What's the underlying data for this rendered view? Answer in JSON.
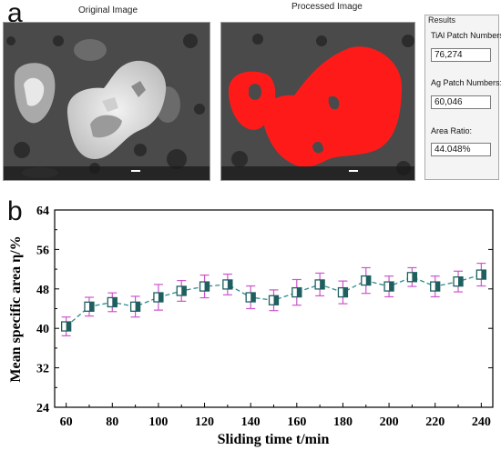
{
  "panel_a": {
    "letter": "a",
    "original_title": "Original Image",
    "processed_title": "Processed Image",
    "results": {
      "title": "Results",
      "tial_label": "TiAl Patch Numbers:",
      "tial_value": "76,274",
      "ag_label": "Ag Patch Numbers:",
      "ag_value": "60,046",
      "ratio_label": "Area Ratio:",
      "ratio_value": "44.048%"
    },
    "colors": {
      "highlight": "#ff1a1a",
      "sem_dark": "#3a3a3a",
      "sem_light": "#d8d8d8"
    }
  },
  "panel_b": {
    "letter": "b"
  },
  "chart_data": {
    "type": "line",
    "xlabel": "Sliding time t/min",
    "ylabel": "Mean specific area η/%",
    "xlim": [
      55,
      245
    ],
    "ylim": [
      24,
      64
    ],
    "xticks": [
      60,
      80,
      100,
      120,
      140,
      160,
      180,
      200,
      220,
      240
    ],
    "yticks": [
      24,
      32,
      40,
      48,
      56,
      64
    ],
    "series": [
      {
        "x": [
          60,
          70,
          80,
          90,
          100,
          110,
          120,
          130,
          140,
          150,
          160,
          170,
          180,
          190,
          200,
          210,
          220,
          230,
          240
        ],
        "y": [
          40.4,
          44.4,
          45.3,
          44.4,
          46.3,
          47.6,
          48.5,
          48.9,
          46.3,
          45.7,
          47.3,
          48.9,
          47.3,
          49.7,
          48.5,
          50.4,
          48.5,
          49.5,
          50.9
        ],
        "err": [
          1.9,
          1.9,
          1.9,
          2.1,
          2.6,
          2.1,
          2.3,
          2.1,
          2.3,
          2.1,
          2.6,
          2.3,
          2.3,
          2.6,
          2.1,
          1.9,
          2.1,
          2.1,
          2.3
        ]
      }
    ],
    "colors": {
      "line": "#2e8b8b",
      "marker_fill": "#1f5f5f",
      "error_bar": "#cc55cc"
    },
    "grid": false
  }
}
